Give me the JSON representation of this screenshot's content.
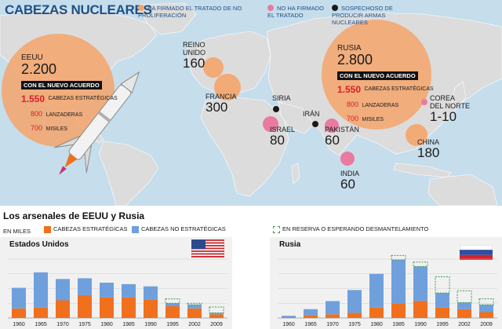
{
  "header": {
    "title": "CABEZAS NUCLEARES"
  },
  "map_legend": [
    {
      "text": "HA FIRMADO EL TRATADO DE NO PROLIFERACIÓN",
      "color": "#f4a46b"
    },
    {
      "text": "NO HA FIRMADO EL TRATADO",
      "color": "#e97aa0"
    },
    {
      "text": "SOSPECHOSO DE PRODUCIR ARMAS NUCLEARES",
      "color": "#1a1a1a"
    }
  ],
  "usa": {
    "name": "EEUU",
    "total": "2.200",
    "agreement": "CON EL NUEVO ACUERDO",
    "strategic_num": "1.550",
    "strategic_label": "CABEZAS ESTRATÉGICAS",
    "launchers_num": "800",
    "launchers_label": "LANZADERAS",
    "missiles_num": "700",
    "missiles_label": "MISILES"
  },
  "russia": {
    "name": "RUSIA",
    "total": "2.800",
    "agreement": "CON EL NUEVO ACUERDO",
    "strategic_num": "1.550",
    "strategic_label": "CABEZAS ESTRATÉGICAS",
    "launchers_num": "800",
    "launchers_label": "LANZADERAS",
    "missiles_num": "700",
    "missiles_label": "MISILES"
  },
  "countries": {
    "uk": {
      "name_1": "REINO",
      "name_2": "UNIDO",
      "value": "160"
    },
    "france": {
      "name": "FRANCIA",
      "value": "300"
    },
    "syria": {
      "name": "SIRIA"
    },
    "iran": {
      "name": "IRÁN"
    },
    "israel": {
      "name": "ISRAEL",
      "value": "80"
    },
    "pakistan": {
      "name": "PAKISTÁN",
      "value": "60"
    },
    "india": {
      "name": "INDIA",
      "value": "60"
    },
    "nkorea": {
      "name_1": "COREA",
      "name_2": "DEL NORTE",
      "value": "1-10"
    },
    "china": {
      "name": "CHINA",
      "value": "180"
    }
  },
  "section": {
    "title": "Los arsenales de EEUU y Rusia",
    "unit": "EN MILES",
    "legend_strategic": "CABEZAS ESTRATÉGICAS",
    "legend_nonstrategic": "CABEZAS NO ESTRATÉGICAS",
    "legend_reserve": "EN RESERVA O ESPERANDO DESMANTELAMIENTO"
  },
  "colors": {
    "strategic": "#f0701e",
    "nonstrategic": "#6fa0dc",
    "reserve": "#3f9a55",
    "map_land": "#dcdcdc",
    "map_sea": "#c6ddec"
  },
  "chart_data": [
    {
      "type": "bar",
      "title": "Estados Unidos",
      "categories": [
        "1960",
        "1965",
        "1970",
        "1975",
        "1980",
        "1985",
        "1990",
        "1995",
        "2002",
        "2009"
      ],
      "ylim": [
        0,
        40
      ],
      "grid": true,
      "series": [
        {
          "name": "CABEZAS ESTRATÉGICAS",
          "values": [
            6.5,
            7,
            12,
            15.5,
            14,
            14,
            12.5,
            8,
            6.5,
            2.5
          ]
        },
        {
          "name": "CABEZAS NO ESTRATÉGICAS",
          "values": [
            14,
            24,
            14.5,
            11.5,
            10,
            9,
            9,
            2,
            2.5,
            1
          ]
        },
        {
          "name": "EN RESERVA O ESPERANDO DESMANTELAMIENTO",
          "values": [
            0,
            0,
            0,
            0,
            0,
            0,
            0,
            3,
            1,
            4
          ]
        }
      ]
    },
    {
      "type": "bar",
      "title": "Rusia",
      "categories": [
        "1960",
        "1965",
        "1970",
        "1975",
        "1980",
        "1985",
        "1990",
        "1995",
        "2002",
        "2009"
      ],
      "ylim": [
        0,
        40
      ],
      "grid": true,
      "series": [
        {
          "name": "CABEZAS ESTRATÉGICAS",
          "values": [
            0.5,
            2,
            2.5,
            3.5,
            7,
            10,
            11.5,
            7,
            6,
            4
          ]
        },
        {
          "name": "CABEZAS NO ESTRATÉGICAS",
          "values": [
            1,
            4,
            9,
            15.5,
            23,
            29.5,
            23.5,
            10,
            4.5,
            5
          ]
        },
        {
          "name": "EN RESERVA O ESPERANDO DESMANTELAMIENTO",
          "values": [
            0,
            0,
            0,
            0,
            0,
            3,
            3,
            11,
            8,
            4
          ]
        }
      ]
    }
  ]
}
